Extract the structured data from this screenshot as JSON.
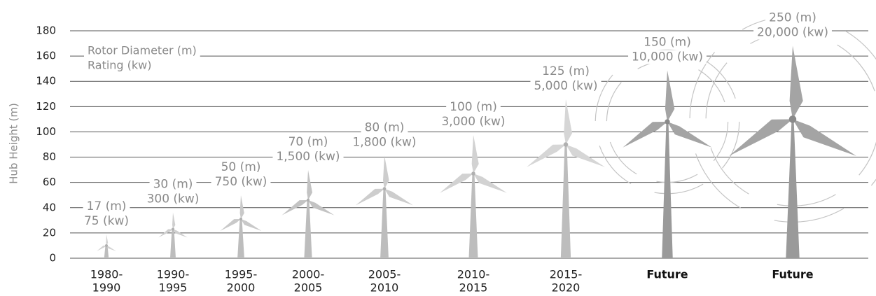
{
  "chart_data": {
    "type": "turbine",
    "y_axis_label": "Hub Height (m)",
    "legend": [
      "Rotor Diameter (m)",
      "Rating (kw)"
    ],
    "categories": [
      [
        "1980-",
        "1990"
      ],
      [
        "1990-",
        "1995"
      ],
      [
        "1995-",
        "2000"
      ],
      [
        "2000-",
        "2005"
      ],
      [
        "2005-",
        "2010"
      ],
      [
        "2010-",
        "2015"
      ],
      [
        "2015-",
        "2020"
      ],
      [
        "Future"
      ],
      [
        "Future"
      ]
    ],
    "hub_height": {
      "name": "Hub Height (m)",
      "values": [
        10,
        23,
        31,
        46,
        55,
        67,
        90,
        108,
        110
      ]
    },
    "rotor_diameter": {
      "name": "Rotor Diameter (m)",
      "values": [
        17,
        30,
        50,
        70,
        80,
        100,
        125,
        150,
        250
      ],
      "value_labels": [
        "17 (m)",
        "30 (m)",
        "50 (m)",
        "70 (m)",
        "80 (m)",
        "100 (m)",
        "125 (m)",
        "150 (m)",
        "250 (m)"
      ]
    },
    "rating": {
      "name": "Rating (kw)",
      "values": [
        75,
        300,
        750,
        1500,
        1800,
        3000,
        5000,
        10000,
        20000
      ],
      "value_labels": [
        "75 (kw)",
        "300 (kw)",
        "750 (kw)",
        "1,500 (kw)",
        "1,800 (kw)",
        "3,000 (kw)",
        "5,000 (kw)",
        "10,000 (kw)",
        "20,000 (kw)"
      ]
    },
    "colors": [
      "#d4d4d4",
      "#cfcfcf",
      "#c9c9c9",
      "#c3c3c3",
      "#cdcdcd",
      "#d2d2d2",
      "#d6d6d6",
      "#a4a4a4",
      "#a4a4a4"
    ],
    "ylim": [
      0,
      180
    ],
    "yticks": [
      0,
      20,
      40,
      60,
      80,
      100,
      120,
      140,
      160,
      180
    ],
    "grid": true
  }
}
